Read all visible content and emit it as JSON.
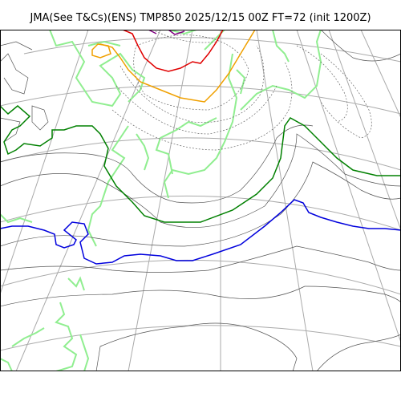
{
  "title": "JMA(See T&Cs)(ENS) TMP850 2025/12/15 00Z FT=72 (init 1200Z)",
  "colors": {
    "coastline": "#90ee90",
    "graticule": "#aaaaaa",
    "contour_solid": "#555555",
    "contour_dashed": "#666666",
    "isotherm_0": "#0000dd",
    "isotherm_minus6": "#008000",
    "isotherm_warm_orange": "#f0a000",
    "isotherm_warm_red": "#e00000",
    "isotherm_purple": "#800080"
  }
}
